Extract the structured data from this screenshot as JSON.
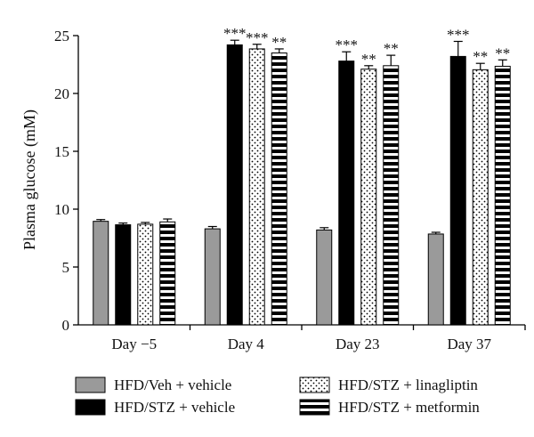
{
  "chart_data": {
    "type": "bar",
    "title": "",
    "xlabel": "",
    "ylabel": "Plasma glucose (mM)",
    "ylim": [
      0,
      25
    ],
    "yticks": [
      0,
      5,
      10,
      15,
      20,
      25
    ],
    "categories": [
      "Day −5",
      "Day 4",
      "Day 23",
      "Day 37"
    ],
    "series": [
      {
        "name": "HFD/Veh + vehicle",
        "pattern": "solid-gray",
        "color": "#9a9a9a",
        "values": [
          8.95,
          8.3,
          8.2,
          7.85
        ],
        "errors": [
          0.15,
          0.2,
          0.2,
          0.15
        ],
        "annotations": [
          "",
          "",
          "",
          ""
        ]
      },
      {
        "name": "HFD/STZ + vehicle",
        "pattern": "solid-black",
        "color": "#000000",
        "values": [
          8.65,
          24.2,
          22.8,
          23.2
        ],
        "errors": [
          0.15,
          0.4,
          0.8,
          1.3
        ],
        "annotations": [
          "",
          "***",
          "***",
          "***"
        ]
      },
      {
        "name": "HFD/STZ + linagliptin",
        "pattern": "dots",
        "color": "#000000",
        "values": [
          8.7,
          23.85,
          22.1,
          22.05
        ],
        "errors": [
          0.15,
          0.4,
          0.3,
          0.55
        ],
        "annotations": [
          "",
          "***",
          "**",
          "**"
        ]
      },
      {
        "name": "HFD/STZ + metformin",
        "pattern": "horizontal-stripes",
        "color": "#000000",
        "values": [
          8.9,
          23.5,
          22.4,
          22.35
        ],
        "errors": [
          0.25,
          0.35,
          0.9,
          0.55
        ],
        "annotations": [
          "",
          "**",
          "**",
          "**"
        ]
      }
    ],
    "grid": false,
    "legend_position": "bottom"
  }
}
